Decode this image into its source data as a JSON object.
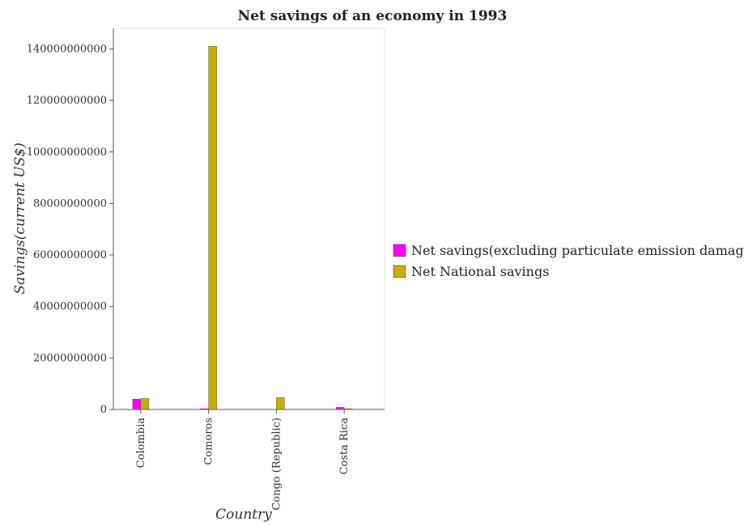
{
  "chart_data": {
    "type": "bar",
    "title": "Net savings of an economy in 1993",
    "xlabel": "Country",
    "ylabel": "Savings(current US$)",
    "categories": [
      "Colombia",
      "Comoros",
      "Congo (Republic)",
      "Costa Rica"
    ],
    "series": [
      {
        "name": "Net savings(excluding particulate emission damage)",
        "color": "#ff00ff",
        "values": [
          4050000000,
          120000000,
          0,
          850000000
        ]
      },
      {
        "name": "Net National savings",
        "color": "#c2b100",
        "values": [
          4300000000,
          141000000000,
          4600000000,
          180000000
        ]
      }
    ],
    "ylim": [
      0,
      148000000000
    ],
    "yticks": [
      0,
      20000000000,
      40000000000,
      60000000000,
      80000000000,
      100000000000,
      120000000000,
      140000000000
    ],
    "ytick_labels": [
      "0",
      "20000000000",
      "40000000000",
      "60000000000",
      "80000000000",
      "100000000000",
      "120000000000",
      "140000000000"
    ],
    "grid": false,
    "legend_position": "right"
  }
}
